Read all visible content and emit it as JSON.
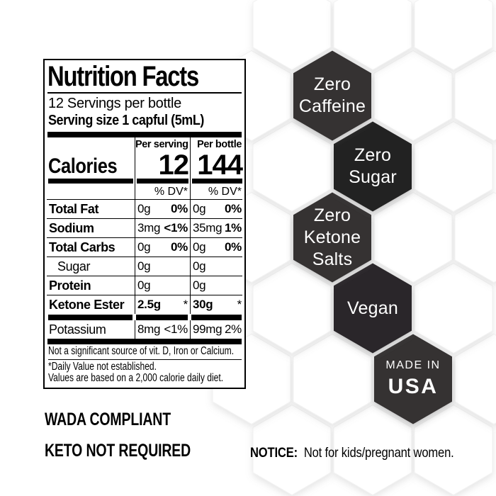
{
  "nutrition": {
    "title": "Nutrition Facts",
    "servings_line": "12 Servings per bottle",
    "serving_size_line": "Serving size 1 capful (5mL)",
    "columns": {
      "per_serving": "Per serving",
      "per_bottle": "Per bottle"
    },
    "calories": {
      "label": "Calories",
      "per_serving": "12",
      "per_bottle": "144"
    },
    "dv_header": "% DV*",
    "rows": [
      {
        "name": "Total Fat",
        "name_bold": true,
        "indent": false,
        "serving_amount": "0g",
        "serving_dv": "0%",
        "bottle_amount": "0g",
        "bottle_dv": "0%",
        "amount_bold": false,
        "dv_bold": true,
        "thick_bar_after": ""
      },
      {
        "name": "Sodium",
        "name_bold": true,
        "indent": false,
        "serving_amount": "3mg",
        "serving_dv": "<1%",
        "bottle_amount": "35mg",
        "bottle_dv": "1%",
        "amount_bold": false,
        "dv_bold": true,
        "thick_bar_after": ""
      },
      {
        "name": "Total Carbs",
        "name_bold": true,
        "indent": false,
        "serving_amount": "0g",
        "serving_dv": "0%",
        "bottle_amount": "0g",
        "bottle_dv": "0%",
        "amount_bold": false,
        "dv_bold": true,
        "thick_bar_after": ""
      },
      {
        "name": "Sugar",
        "name_bold": false,
        "indent": true,
        "serving_amount": "0g",
        "serving_dv": "",
        "bottle_amount": "0g",
        "bottle_dv": "",
        "amount_bold": false,
        "dv_bold": false,
        "thick_bar_after": ""
      },
      {
        "name": "Protein",
        "name_bold": true,
        "indent": false,
        "serving_amount": "0g",
        "serving_dv": "",
        "bottle_amount": "0g",
        "bottle_dv": "",
        "amount_bold": false,
        "dv_bold": false,
        "thick_bar_after": ""
      },
      {
        "name": "Ketone Ester",
        "name_bold": true,
        "indent": false,
        "serving_amount": "2.5g",
        "serving_dv": "*",
        "bottle_amount": "30g",
        "bottle_dv": "*",
        "amount_bold": true,
        "dv_bold": false,
        "thick_bar_after": "segmented"
      },
      {
        "name": "Potassium",
        "name_bold": false,
        "indent": false,
        "serving_amount": "8mg",
        "serving_dv": "<1%",
        "bottle_amount": "99mg",
        "bottle_dv": "2%",
        "amount_bold": false,
        "dv_bold": false,
        "thick_bar_after": "full"
      }
    ],
    "footnotes": [
      "Not a significant source of vit. D, Iron or Calcium.",
      "*Daily Value not established.",
      "Values are based on a 2,000 calorie daily diet."
    ]
  },
  "badges": [
    {
      "lines": [
        "Zero",
        "Caffeine"
      ],
      "color": "#363233"
    },
    {
      "lines": [
        "Zero",
        "Sugar"
      ],
      "color": "#242122"
    },
    {
      "lines": [
        "Zero",
        "Ketone",
        "Salts"
      ],
      "color": "#343031"
    },
    {
      "lines": [
        "Vegan"
      ],
      "color": "#2b2829"
    },
    {
      "lines": [
        "MADE IN",
        "USA"
      ],
      "color": "#343031"
    }
  ],
  "claims": {
    "wada": "WADA COMPLIANT",
    "keto": "KETO NOT REQUIRED"
  },
  "notice": {
    "label": "NOTICE:",
    "text": "Not for kids/pregnant women."
  },
  "colors": {
    "background": "#ffffff",
    "badge_text": "#ffffff",
    "label_ink": "#000000"
  }
}
